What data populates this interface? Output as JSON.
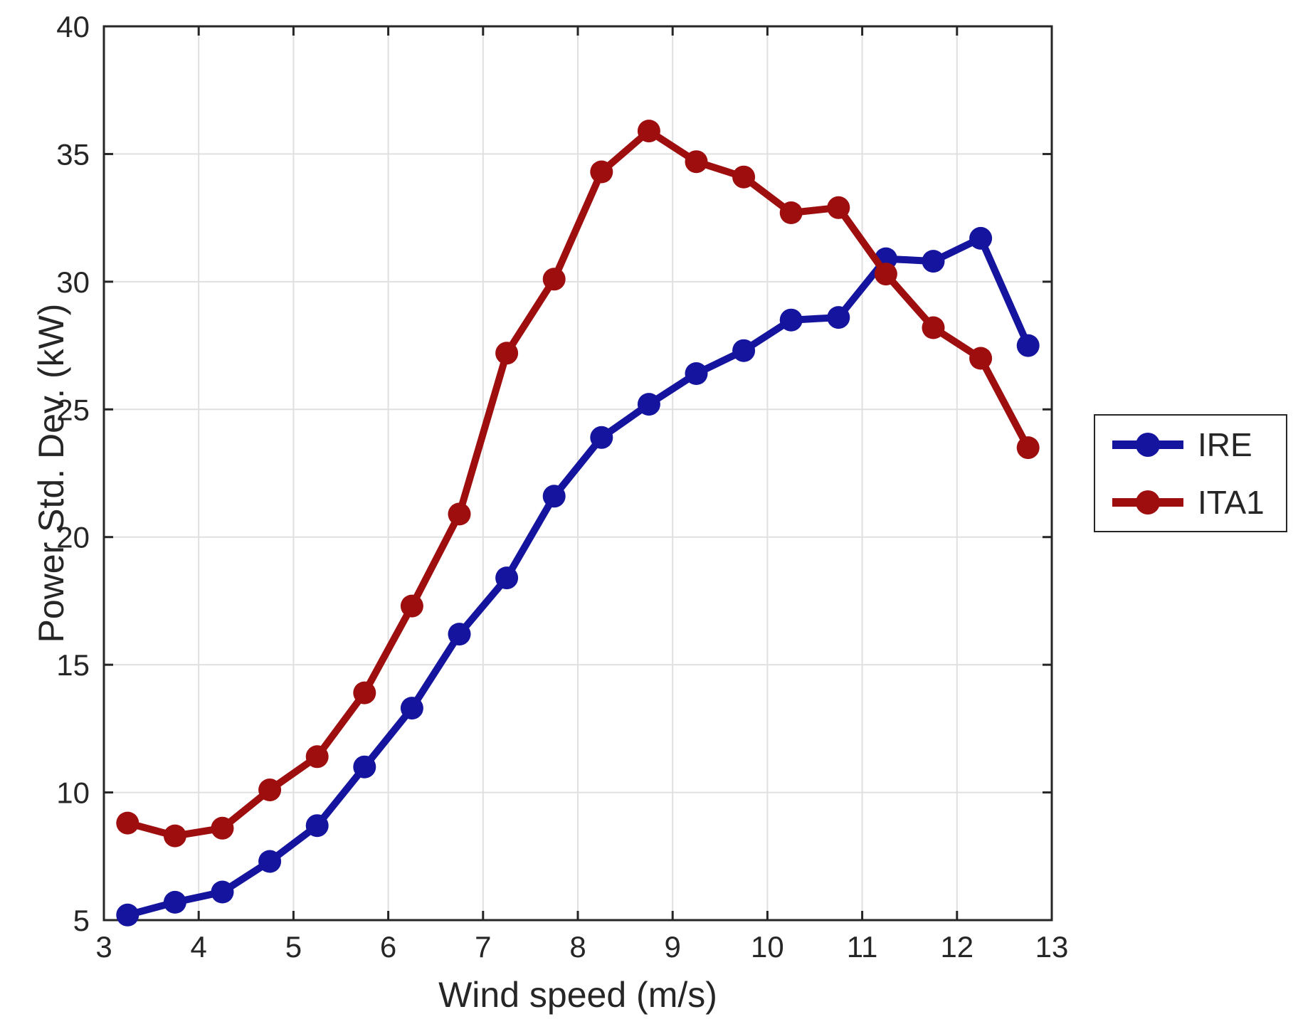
{
  "chart_data": {
    "type": "line",
    "title": "",
    "xlabel": "Wind speed (m/s)",
    "ylabel": "Power Std. Dev. (kW)",
    "xlim": [
      3,
      13
    ],
    "ylim": [
      5,
      40
    ],
    "xticks": [
      3,
      4,
      5,
      6,
      7,
      8,
      9,
      10,
      11,
      12,
      13
    ],
    "yticks": [
      5,
      10,
      15,
      20,
      25,
      30,
      35,
      40
    ],
    "grid": true,
    "legend_position": "outside-right",
    "x": [
      3.25,
      3.75,
      4.25,
      4.75,
      5.25,
      5.75,
      6.25,
      6.75,
      7.25,
      7.75,
      8.25,
      8.75,
      9.25,
      9.75,
      10.25,
      10.75,
      11.25,
      11.75,
      12.25,
      12.75
    ],
    "series": [
      {
        "name": "IRE",
        "color": "#14149E",
        "values": [
          5.2,
          5.7,
          6.1,
          7.3,
          8.7,
          11.0,
          13.3,
          16.2,
          18.4,
          21.6,
          23.9,
          25.2,
          26.4,
          27.3,
          28.5,
          28.6,
          30.9,
          30.8,
          31.7,
          27.5
        ]
      },
      {
        "name": "ITA1",
        "color": "#9E0E0E",
        "values": [
          8.8,
          8.3,
          8.6,
          10.1,
          11.4,
          13.9,
          17.3,
          20.9,
          27.2,
          30.1,
          34.3,
          35.9,
          34.7,
          34.1,
          32.7,
          32.9,
          30.3,
          28.2,
          27.0,
          23.5
        ]
      }
    ],
    "colors": {
      "axis": "#262626",
      "grid": "#E0E0E0",
      "background": "#FFFFFF"
    }
  }
}
